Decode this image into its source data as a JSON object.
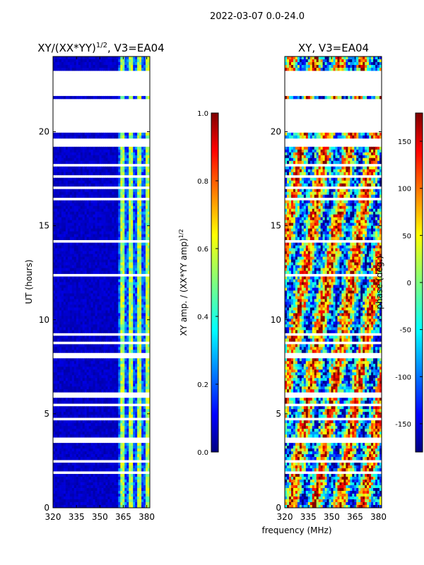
{
  "suptitle": "2022-03-07 0.0-24.0",
  "xlabel_shared": "frequency (MHz)",
  "colors": {
    "jet_stops": [
      "#00007f",
      "#0000ff",
      "#007fff",
      "#00ffff",
      "#7fff7f",
      "#ffff00",
      "#ff7f00",
      "#ff0000",
      "#7f0000"
    ],
    "blank": "#ffffff",
    "axis": "#000000"
  },
  "chart_data": [
    {
      "type": "heatmap",
      "title": "XY/(XX*YY)^1/2, V3=EA04",
      "title_main": "XY/(XX*YY)",
      "title_exp": "1/2",
      "title_tail": ", V3=EA04",
      "xlabel": "",
      "ylabel": "UT (hours)",
      "xlim": [
        320,
        382
      ],
      "ylim": [
        0,
        24
      ],
      "xticks": [
        320,
        335,
        350,
        365,
        380
      ],
      "yticks": [
        0,
        5,
        10,
        15,
        20
      ],
      "colorbar": {
        "label": "XY amp. / (XX*YY amp)^1/2",
        "label_main": "XY amp. / (XX*YY amp)",
        "label_exp": "1/2",
        "range": [
          0.0,
          1.0
        ],
        "ticks": [
          "0.0",
          "0.2",
          "0.4",
          "0.6",
          "0.8",
          "1.0"
        ],
        "tick_values": [
          0.0,
          0.2,
          0.4,
          0.6,
          0.8,
          1.0
        ]
      },
      "pattern": "mostly ~0.0 (dark blue) across band; elevated 0.3-0.6 in 362-382 MHz columns"
    },
    {
      "type": "heatmap",
      "title": "XY, V3=EA04",
      "xlabel": "frequency (MHz)",
      "ylabel": "",
      "xlim": [
        320,
        382
      ],
      "ylim": [
        0,
        24
      ],
      "xticks": [
        320,
        335,
        350,
        365,
        380
      ],
      "yticks": [
        0,
        5,
        10,
        15,
        20
      ],
      "colorbar": {
        "label": "phase (deg.)",
        "range": [
          -180,
          180
        ],
        "ticks": [
          "-150",
          "-100",
          "-50",
          "0",
          "50",
          "100",
          "150"
        ],
        "tick_values": [
          -150,
          -100,
          -50,
          0,
          50,
          100,
          150
        ]
      },
      "pattern": "phase varies over full -180..180 range, noisy with frequency structure"
    }
  ],
  "gaps_hours": [
    [
      23.3,
      21.9
    ],
    [
      21.7,
      20.0
    ],
    [
      19.7,
      19.2
    ],
    [
      18.3,
      18.1
    ],
    [
      17.7,
      17.5
    ],
    [
      17.1,
      17.0
    ],
    [
      16.5,
      16.4
    ],
    [
      15.8,
      15.7
    ],
    [
      14.3,
      14.1
    ],
    [
      13.4,
      13.3
    ],
    [
      12.4,
      12.3
    ],
    [
      11.9,
      11.8
    ],
    [
      11.0,
      10.9
    ],
    [
      10.4,
      10.3
    ],
    [
      9.3,
      9.2
    ],
    [
      8.8,
      8.7
    ],
    [
      8.3,
      8.0
    ],
    [
      7.1,
      7.0
    ],
    [
      6.1,
      5.9
    ],
    [
      5.5,
      5.4
    ],
    [
      4.8,
      4.7
    ],
    [
      3.8,
      3.5
    ],
    [
      2.5,
      2.4
    ],
    [
      1.9,
      1.8
    ],
    [
      1.1,
      1.0
    ],
    [
      0.5,
      0.4
    ]
  ]
}
